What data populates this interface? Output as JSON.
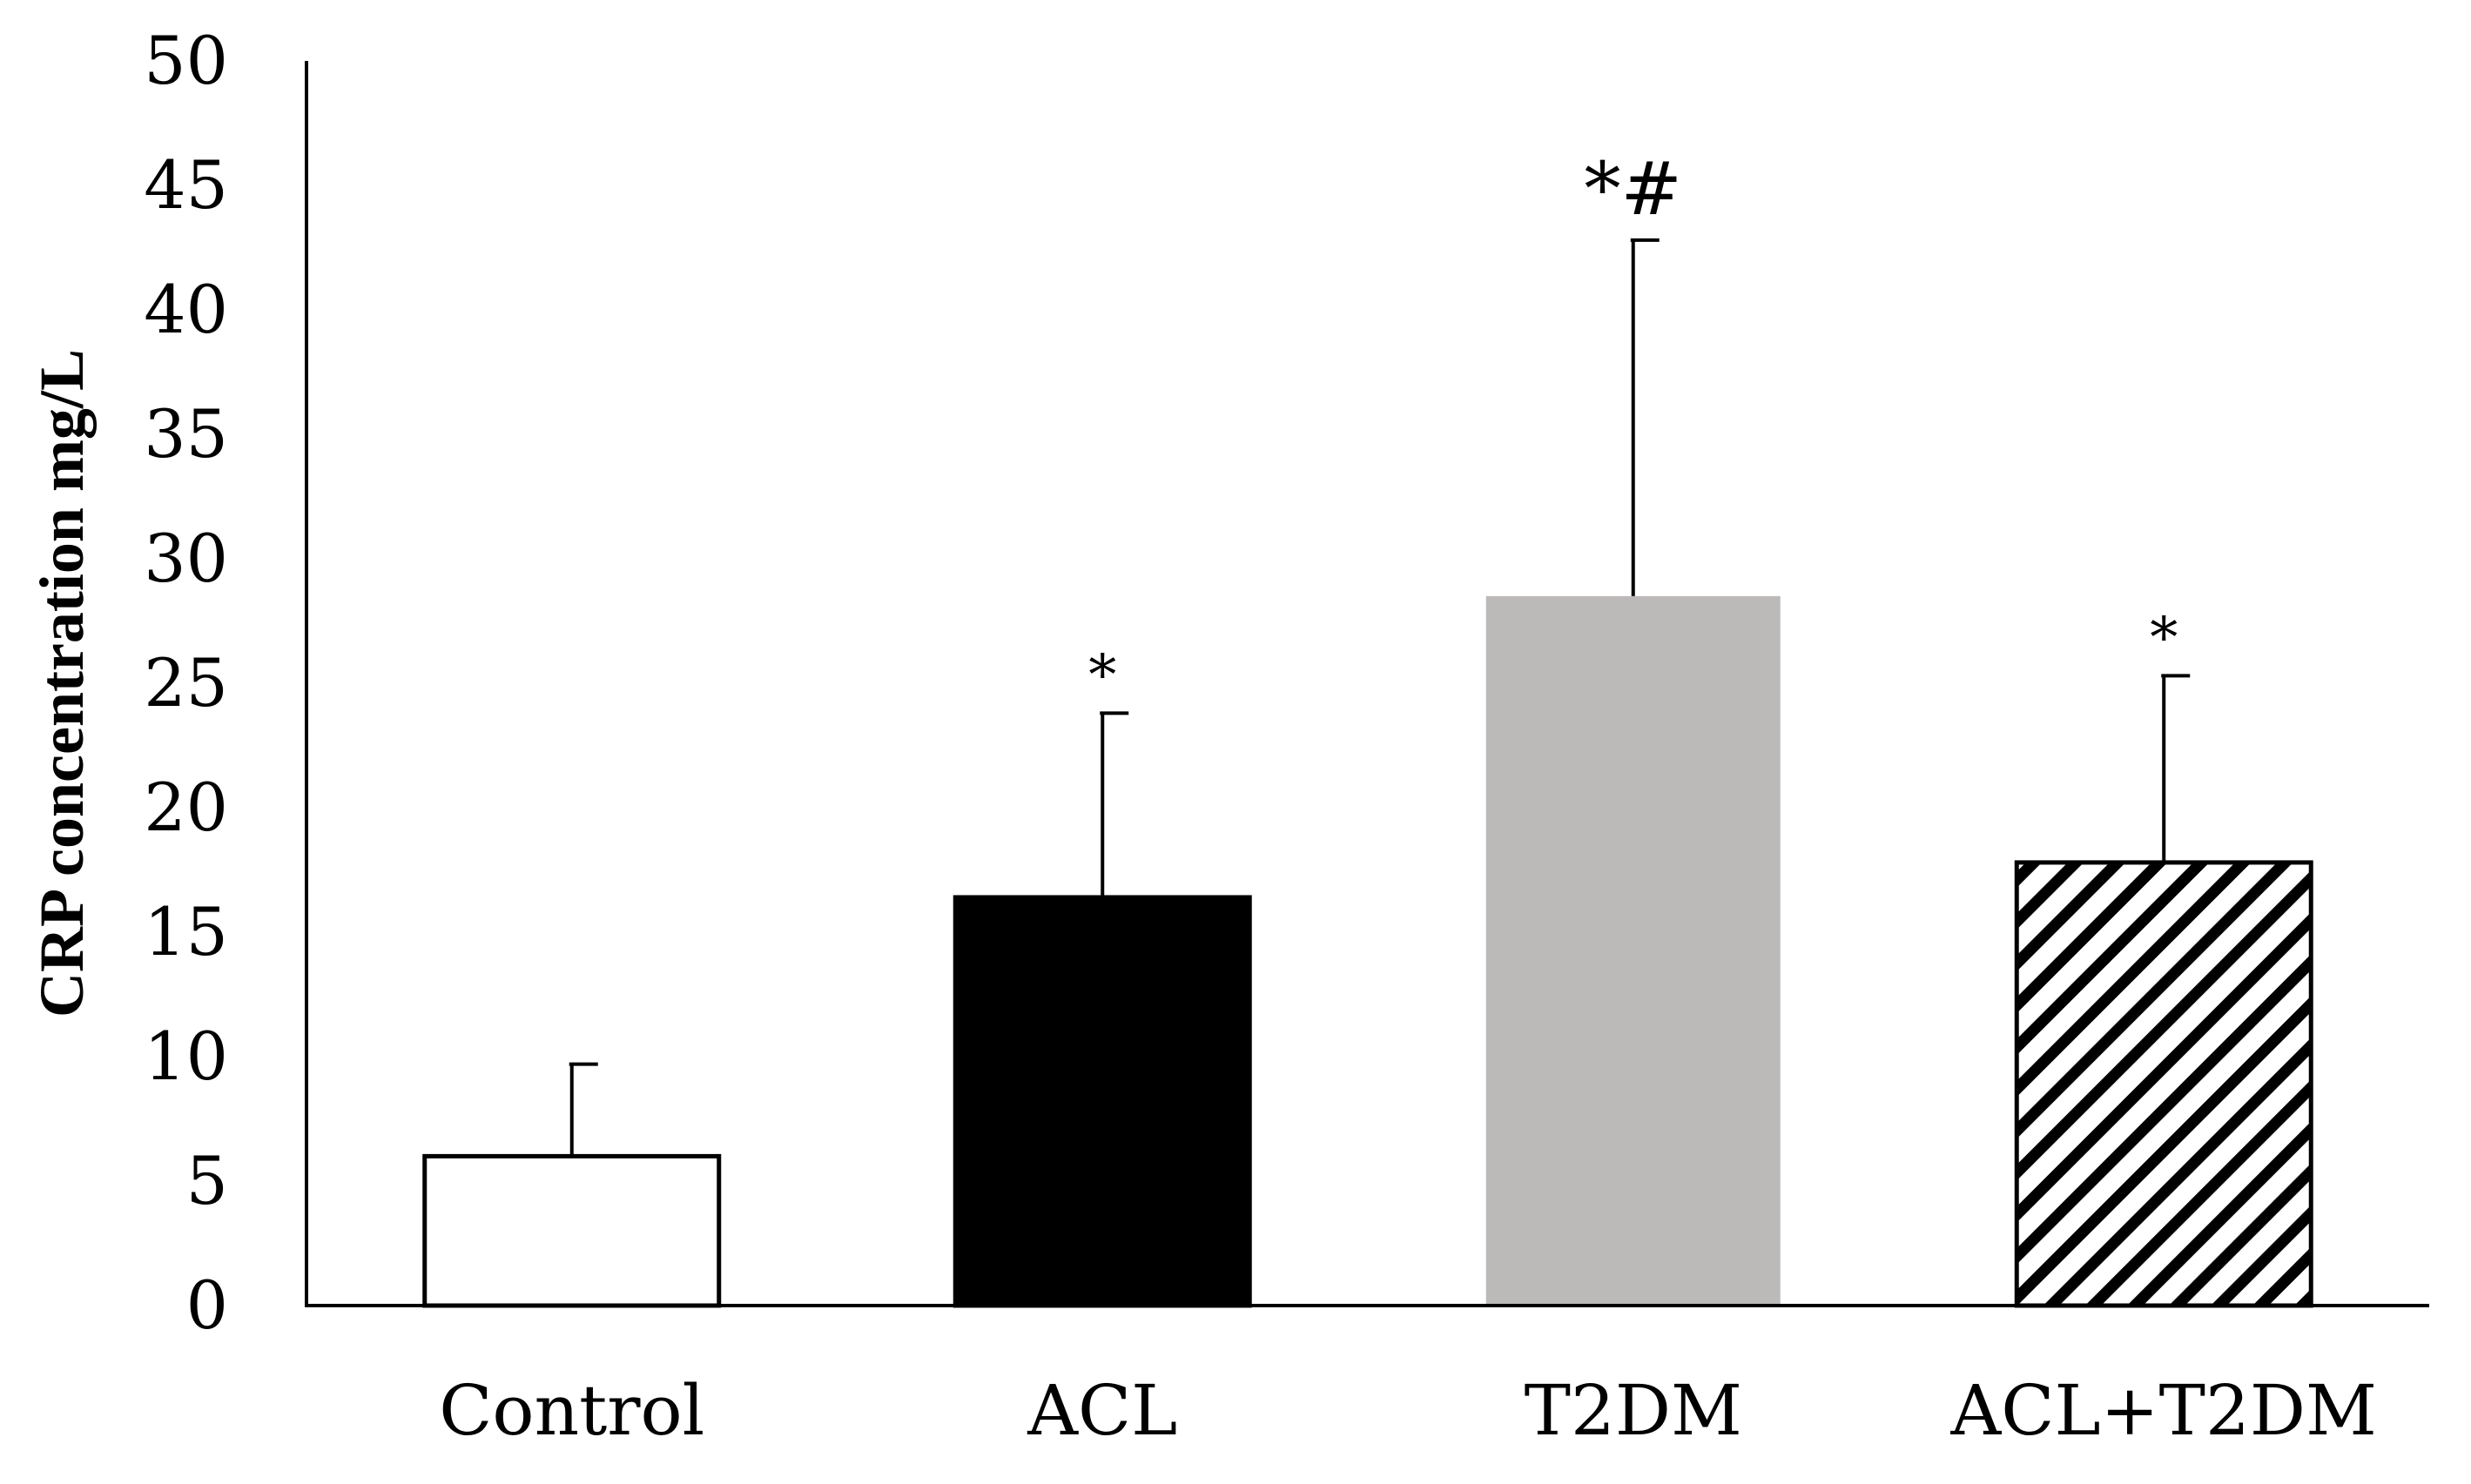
{
  "chart_data": {
    "type": "bar",
    "title": "",
    "xlabel": "",
    "ylabel": "CRP concentration mg/L",
    "ylim": [
      0,
      50
    ],
    "yticks": [
      0,
      5,
      10,
      15,
      20,
      25,
      30,
      35,
      40,
      45,
      50
    ],
    "grid": false,
    "categories": [
      "Control",
      "ACL",
      "T2DM",
      "ACL+T2DM"
    ],
    "values": [
      6.0,
      16.4,
      28.5,
      17.8
    ],
    "errors": [
      3.7,
      7.4,
      14.3,
      7.5
    ],
    "annotations": [
      "",
      "*",
      "*#",
      "*"
    ],
    "bar_styles": [
      {
        "fill": "#ffffff",
        "stroke": "#000000",
        "pattern": "none"
      },
      {
        "fill": "#000000",
        "stroke": "#000000",
        "pattern": "none"
      },
      {
        "fill": "#bcb9b9",
        "stroke": "none",
        "pattern": "none"
      },
      {
        "fill": "#ffffff",
        "stroke": "#000000",
        "pattern": "diagonal-stripes"
      }
    ]
  }
}
